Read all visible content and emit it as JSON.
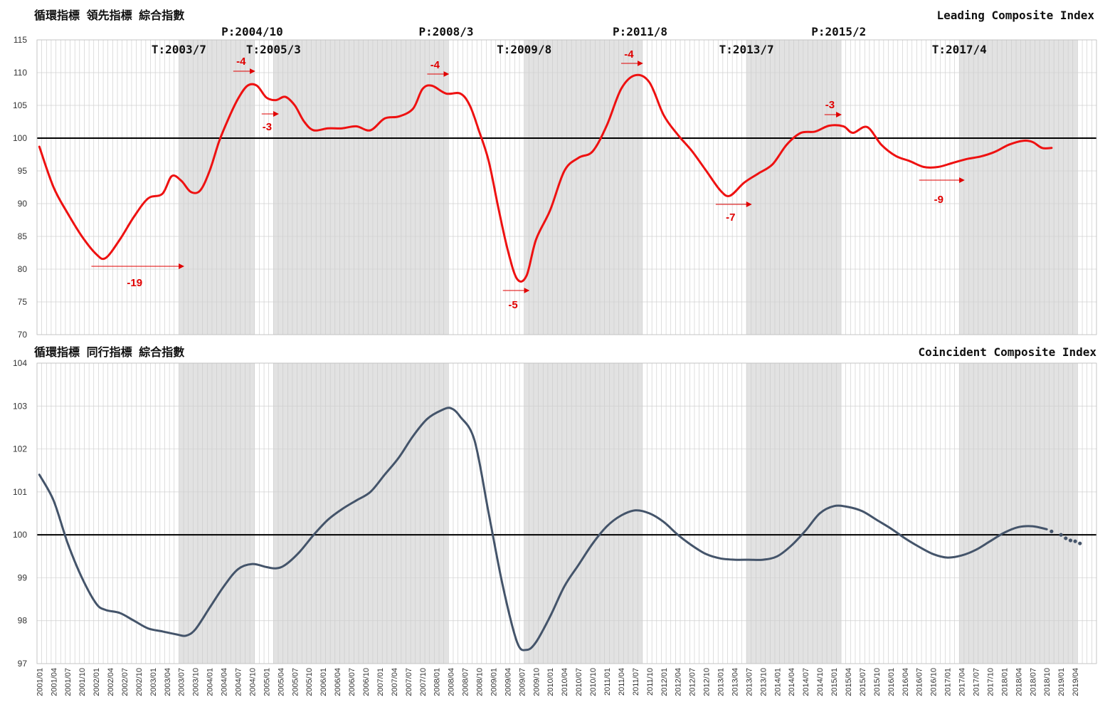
{
  "chart_data": [
    {
      "type": "line",
      "title": "循環指標 領先指標 綜合指數",
      "subtitle": "Leading Composite Index",
      "ylim": [
        70,
        115
      ],
      "yticks": [
        70,
        75,
        80,
        85,
        90,
        95,
        100,
        105,
        110,
        115
      ],
      "reference_line": 100,
      "line_color": "#ee1111",
      "shaded_periods": [
        [
          "2003/07",
          "2004/10"
        ],
        [
          "2005/03",
          "2008/03"
        ],
        [
          "2009/08",
          "2011/08"
        ],
        [
          "2013/07",
          "2015/02"
        ],
        [
          "2017/04",
          "2019/04"
        ]
      ],
      "turning_points": [
        {
          "label": "T:2003/7",
          "date": "2003/07"
        },
        {
          "label": "P:2004/10",
          "date": "2004/10"
        },
        {
          "label": "T:2005/3",
          "date": "2005/03"
        },
        {
          "label": "P:2008/3",
          "date": "2008/03"
        },
        {
          "label": "T:2009/8",
          "date": "2009/08"
        },
        {
          "label": "P:2011/8",
          "date": "2011/08"
        },
        {
          "label": "T:2013/7",
          "date": "2013/07"
        },
        {
          "label": "P:2015/2",
          "date": "2015/02"
        },
        {
          "label": "T:2017/4",
          "date": "2017/04"
        }
      ],
      "lead_annotations": [
        {
          "label": "-19",
          "from": "2001/12",
          "to": "2003/07"
        },
        {
          "label": "-4",
          "from": "2004/06",
          "to": "2004/10"
        },
        {
          "label": "-3",
          "from": "2004/12",
          "to": "2005/03"
        },
        {
          "label": "-4",
          "from": "2007/11",
          "to": "2008/03"
        },
        {
          "label": "-5",
          "from": "2009/03",
          "to": "2009/08"
        },
        {
          "label": "-4",
          "from": "2011/04",
          "to": "2011/08"
        },
        {
          "label": "-7",
          "from": "2012/12",
          "to": "2013/07"
        },
        {
          "label": "-3",
          "from": "2014/11",
          "to": "2015/02"
        },
        {
          "label": "-9",
          "from": "2016/07",
          "to": "2017/04"
        }
      ],
      "series": [
        {
          "points": [
            [
              "2001/01",
              98.7
            ],
            [
              "2001/04",
              92.5
            ],
            [
              "2001/07",
              88.5
            ],
            [
              "2001/10",
              85.0
            ],
            [
              "2002/01",
              82.3
            ],
            [
              "2002/03",
              81.7
            ],
            [
              "2002/06",
              84.5
            ],
            [
              "2002/09",
              88.0
            ],
            [
              "2002/12",
              90.8
            ],
            [
              "2003/03",
              91.5
            ],
            [
              "2003/05",
              94.2
            ],
            [
              "2003/07",
              93.5
            ],
            [
              "2003/09",
              91.8
            ],
            [
              "2003/11",
              92.0
            ],
            [
              "2004/01",
              95.0
            ],
            [
              "2004/03",
              99.5
            ],
            [
              "2004/05",
              103.0
            ],
            [
              "2004/07",
              106.0
            ],
            [
              "2004/09",
              108.0
            ],
            [
              "2004/11",
              108.0
            ],
            [
              "2005/01",
              106.2
            ],
            [
              "2005/03",
              105.8
            ],
            [
              "2005/05",
              106.3
            ],
            [
              "2005/07",
              105.0
            ],
            [
              "2005/09",
              102.5
            ],
            [
              "2005/11",
              101.2
            ],
            [
              "2006/02",
              101.5
            ],
            [
              "2006/05",
              101.5
            ],
            [
              "2006/08",
              101.8
            ],
            [
              "2006/11",
              101.2
            ],
            [
              "2007/02",
              103.0
            ],
            [
              "2007/05",
              103.3
            ],
            [
              "2007/08",
              104.5
            ],
            [
              "2007/10",
              107.5
            ],
            [
              "2007/12",
              108.0
            ],
            [
              "2008/03",
              106.8
            ],
            [
              "2008/06",
              106.8
            ],
            [
              "2008/08",
              105.0
            ],
            [
              "2008/10",
              101.0
            ],
            [
              "2008/12",
              96.5
            ],
            [
              "2009/02",
              89.5
            ],
            [
              "2009/04",
              83.0
            ],
            [
              "2009/06",
              78.5
            ],
            [
              "2009/08",
              79.0
            ],
            [
              "2009/10",
              84.5
            ],
            [
              "2010/01",
              89.0
            ],
            [
              "2010/04",
              95.0
            ],
            [
              "2010/07",
              97.0
            ],
            [
              "2010/10",
              98.0
            ],
            [
              "2011/01",
              102.0
            ],
            [
              "2011/04",
              107.5
            ],
            [
              "2011/07",
              109.6
            ],
            [
              "2011/10",
              108.5
            ],
            [
              "2012/01",
              103.5
            ],
            [
              "2012/04",
              100.5
            ],
            [
              "2012/07",
              98.0
            ],
            [
              "2012/10",
              95.0
            ],
            [
              "2013/01",
              92.0
            ],
            [
              "2013/03",
              91.2
            ],
            [
              "2013/06",
              93.2
            ],
            [
              "2013/09",
              94.6
            ],
            [
              "2013/12",
              96.0
            ],
            [
              "2014/03",
              99.0
            ],
            [
              "2014/06",
              100.8
            ],
            [
              "2014/09",
              101.0
            ],
            [
              "2014/12",
              101.9
            ],
            [
              "2015/03",
              101.8
            ],
            [
              "2015/05",
              100.8
            ],
            [
              "2015/08",
              101.7
            ],
            [
              "2015/11",
              99.0
            ],
            [
              "2016/02",
              97.3
            ],
            [
              "2016/05",
              96.5
            ],
            [
              "2016/08",
              95.6
            ],
            [
              "2016/11",
              95.6
            ],
            [
              "2017/02",
              96.2
            ],
            [
              "2017/05",
              96.8
            ],
            [
              "2017/08",
              97.2
            ],
            [
              "2017/11",
              97.9
            ],
            [
              "2018/02",
              99.0
            ],
            [
              "2018/05",
              99.6
            ],
            [
              "2018/07",
              99.4
            ],
            [
              "2018/09",
              98.5
            ],
            [
              "2018/11",
              98.5
            ]
          ]
        }
      ]
    },
    {
      "type": "line",
      "title": "循環指標 同行指標 綜合指數",
      "subtitle": "Coincident Composite Index",
      "ylim": [
        97,
        104
      ],
      "yticks": [
        97,
        98,
        99,
        100,
        101,
        102,
        103,
        104
      ],
      "reference_line": 100,
      "line_color": "#44546a",
      "series": [
        {
          "points": [
            [
              "2001/01",
              101.4
            ],
            [
              "2001/04",
              100.8
            ],
            [
              "2001/07",
              99.8
            ],
            [
              "2001/10",
              99.0
            ],
            [
              "2002/01",
              98.4
            ],
            [
              "2002/03",
              98.25
            ],
            [
              "2002/06",
              98.18
            ],
            [
              "2002/09",
              98.0
            ],
            [
              "2002/12",
              97.82
            ],
            [
              "2003/03",
              97.75
            ],
            [
              "2003/06",
              97.68
            ],
            [
              "2003/08",
              97.65
            ],
            [
              "2003/10",
              97.8
            ],
            [
              "2004/01",
              98.3
            ],
            [
              "2004/04",
              98.8
            ],
            [
              "2004/07",
              99.2
            ],
            [
              "2004/10",
              99.32
            ],
            [
              "2005/01",
              99.25
            ],
            [
              "2005/03",
              99.22
            ],
            [
              "2005/05",
              99.3
            ],
            [
              "2005/08",
              99.6
            ],
            [
              "2005/11",
              100.0
            ],
            [
              "2006/02",
              100.35
            ],
            [
              "2006/05",
              100.6
            ],
            [
              "2006/08",
              100.8
            ],
            [
              "2006/11",
              101.0
            ],
            [
              "2007/02",
              101.4
            ],
            [
              "2007/05",
              101.8
            ],
            [
              "2007/08",
              102.3
            ],
            [
              "2007/11",
              102.7
            ],
            [
              "2008/02",
              102.9
            ],
            [
              "2008/04",
              102.95
            ],
            [
              "2008/06",
              102.75
            ],
            [
              "2008/09",
              102.2
            ],
            [
              "2008/12",
              100.5
            ],
            [
              "2009/03",
              98.8
            ],
            [
              "2009/06",
              97.5
            ],
            [
              "2009/08",
              97.32
            ],
            [
              "2009/10",
              97.5
            ],
            [
              "2010/01",
              98.1
            ],
            [
              "2010/04",
              98.8
            ],
            [
              "2010/07",
              99.3
            ],
            [
              "2010/10",
              99.8
            ],
            [
              "2011/01",
              100.2
            ],
            [
              "2011/04",
              100.45
            ],
            [
              "2011/07",
              100.57
            ],
            [
              "2011/10",
              100.5
            ],
            [
              "2012/01",
              100.3
            ],
            [
              "2012/04",
              100.0
            ],
            [
              "2012/07",
              99.75
            ],
            [
              "2012/10",
              99.55
            ],
            [
              "2013/01",
              99.45
            ],
            [
              "2013/04",
              99.42
            ],
            [
              "2013/07",
              99.42
            ],
            [
              "2013/10",
              99.42
            ],
            [
              "2014/01",
              99.5
            ],
            [
              "2014/04",
              99.75
            ],
            [
              "2014/07",
              100.1
            ],
            [
              "2014/10",
              100.5
            ],
            [
              "2015/01",
              100.67
            ],
            [
              "2015/04",
              100.65
            ],
            [
              "2015/07",
              100.55
            ],
            [
              "2015/10",
              100.35
            ],
            [
              "2016/01",
              100.15
            ],
            [
              "2016/04",
              99.92
            ],
            [
              "2016/07",
              99.72
            ],
            [
              "2016/10",
              99.55
            ],
            [
              "2017/01",
              99.47
            ],
            [
              "2017/04",
              99.52
            ],
            [
              "2017/07",
              99.65
            ],
            [
              "2017/10",
              99.85
            ],
            [
              "2018/01",
              100.05
            ],
            [
              "2018/04",
              100.18
            ],
            [
              "2018/07",
              100.2
            ],
            [
              "2018/10",
              100.13
            ]
          ]
        },
        {
          "style": "dotted",
          "points": [
            [
              "2018/11",
              100.08
            ],
            [
              "2019/01",
              100.0
            ],
            [
              "2019/02",
              99.92
            ],
            [
              "2019/03",
              99.87
            ],
            [
              "2019/04",
              99.85
            ],
            [
              "2019/05",
              99.8
            ]
          ]
        }
      ],
      "xticks": [
        "2001/01",
        "2001/04",
        "2001/07",
        "2001/10",
        "2002/01",
        "2002/04",
        "2002/07",
        "2002/10",
        "2003/01",
        "2003/04",
        "2003/07",
        "2003/10",
        "2004/01",
        "2004/04",
        "2004/07",
        "2004/10",
        "2005/01",
        "2005/04",
        "2005/07",
        "2005/10",
        "2006/01",
        "2006/04",
        "2006/07",
        "2006/10",
        "2007/01",
        "2007/04",
        "2007/07",
        "2007/10",
        "2008/01",
        "2008/04",
        "2008/07",
        "2008/10",
        "2009/01",
        "2009/04",
        "2009/07",
        "2009/10",
        "2010/01",
        "2010/04",
        "2010/07",
        "2010/10",
        "2011/01",
        "2011/04",
        "2011/07",
        "2011/10",
        "2012/01",
        "2012/04",
        "2012/07",
        "2012/10",
        "2013/01",
        "2013/04",
        "2013/07",
        "2013/10",
        "2014/01",
        "2014/04",
        "2014/07",
        "2014/10",
        "2015/01",
        "2015/04",
        "2015/07",
        "2015/10",
        "2016/01",
        "2016/04",
        "2016/07",
        "2016/10",
        "2017/01",
        "2017/04",
        "2017/07",
        "2017/10",
        "2018/01",
        "2018/04",
        "2018/07",
        "2018/10",
        "2019/01",
        "2019/04"
      ]
    }
  ]
}
